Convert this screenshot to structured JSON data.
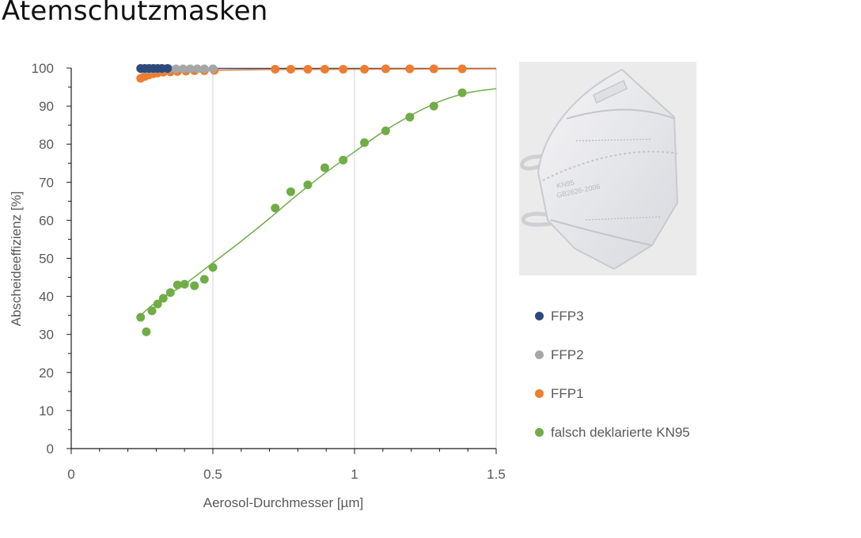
{
  "title": "Atemschutzmasken",
  "chart_data": {
    "type": "scatter",
    "xlabel": "Aerosol-Durchmesser [µm]",
    "ylabel": "Abscheideeffizienz [%]",
    "xlim": [
      0,
      1.5
    ],
    "ylim": [
      0,
      100
    ],
    "xticks": [
      0,
      0.5,
      1,
      1.5
    ],
    "xtick_labels": [
      "0",
      "0.5",
      "1",
      "1.5"
    ],
    "yticks": [
      0,
      10,
      20,
      30,
      40,
      50,
      60,
      70,
      80,
      90,
      100
    ],
    "grid": "vertical major lines",
    "legend_position": "right",
    "series": [
      {
        "name": "FFP3",
        "color": "#2e4a7d",
        "x": [
          0.245,
          0.26,
          0.275,
          0.29,
          0.305,
          0.32,
          0.34
        ],
        "y": [
          99.9,
          99.9,
          99.9,
          99.9,
          99.9,
          99.9,
          99.9
        ],
        "fit_line": true
      },
      {
        "name": "FFP2",
        "color": "#a6a6a6",
        "x": [
          0.25,
          0.265,
          0.28,
          0.295,
          0.31,
          0.325,
          0.345,
          0.37,
          0.395,
          0.42,
          0.445,
          0.47,
          0.5
        ],
        "y": [
          99.7,
          99.7,
          99.7,
          99.8,
          99.8,
          99.8,
          99.8,
          99.8,
          99.8,
          99.8,
          99.8,
          99.8,
          99.8
        ],
        "fit_line": false
      },
      {
        "name": "FFP1",
        "color": "#ed7d31",
        "x": [
          0.245,
          0.26,
          0.275,
          0.29,
          0.305,
          0.325,
          0.35,
          0.375,
          0.405,
          0.435,
          0.47,
          0.505,
          0.72,
          0.775,
          0.835,
          0.895,
          0.96,
          1.035,
          1.11,
          1.195,
          1.28,
          1.38
        ],
        "y": [
          97.3,
          97.8,
          98.2,
          98.5,
          98.7,
          98.9,
          99.0,
          99.1,
          99.2,
          99.3,
          99.3,
          99.4,
          99.7,
          99.7,
          99.7,
          99.7,
          99.7,
          99.7,
          99.8,
          99.8,
          99.8,
          99.8
        ],
        "fit": [
          [
            0.245,
            97.3
          ],
          [
            0.3,
            98.6
          ],
          [
            0.4,
            99.2
          ],
          [
            0.5,
            99.4
          ],
          [
            0.7,
            99.6
          ],
          [
            1.0,
            99.7
          ],
          [
            1.5,
            99.8
          ]
        ]
      },
      {
        "name": "falsch deklarierte KN95",
        "color": "#70ad47",
        "x": [
          0.245,
          0.265,
          0.285,
          0.305,
          0.325,
          0.35,
          0.375,
          0.4,
          0.435,
          0.47,
          0.5,
          0.72,
          0.775,
          0.835,
          0.895,
          0.96,
          1.035,
          1.11,
          1.195,
          1.28,
          1.38
        ],
        "y": [
          34.5,
          30.7,
          36.2,
          38.0,
          39.5,
          41.0,
          43.0,
          43.2,
          42.8,
          44.5,
          47.6,
          63.2,
          67.5,
          69.3,
          73.8,
          75.8,
          80.4,
          83.5,
          87.1,
          90.0,
          93.5
        ],
        "fit": [
          [
            0.245,
            35.0
          ],
          [
            0.3,
            38.5
          ],
          [
            0.4,
            43.2
          ],
          [
            0.5,
            48.8
          ],
          [
            0.6,
            54.5
          ],
          [
            0.7,
            60.5
          ],
          [
            0.8,
            66.8
          ],
          [
            0.9,
            72.6
          ],
          [
            1.0,
            78.0
          ],
          [
            1.1,
            83.2
          ],
          [
            1.2,
            87.6
          ],
          [
            1.3,
            91.2
          ],
          [
            1.4,
            93.5
          ],
          [
            1.5,
            94.6
          ]
        ]
      }
    ]
  },
  "legend": {
    "items": [
      {
        "label": "FFP3",
        "color": "#2e4a7d"
      },
      {
        "label": "FFP2",
        "color": "#a6a6a6"
      },
      {
        "label": "FFP1",
        "color": "#ed7d31"
      },
      {
        "label": "falsch deklarierte KN95",
        "color": "#70ad47"
      }
    ]
  },
  "photo": {
    "mask_print_line1": "KN95",
    "mask_print_line2": "GB2626-2006"
  }
}
